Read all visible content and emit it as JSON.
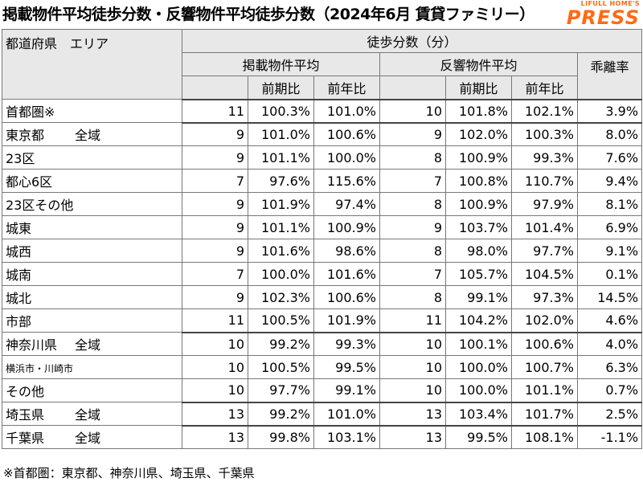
{
  "title": "掲載物件平均徒歩分数・反響物件平均徒歩分数（2024年6月 賃貸ファミリー）",
  "brand": {
    "top": "LIFULL HOME'S",
    "main": "PRESS"
  },
  "headers": {
    "region": "都道府県　エリア",
    "walk": "徒歩分数（分）",
    "listed": "掲載物件平均",
    "response": "反響物件平均",
    "gap": "乖離率",
    "prev_period": "前期比",
    "prev_year": "前年比"
  },
  "rows": [
    {
      "pref": "首都圏※",
      "area": "",
      "level": 0,
      "l_min": "11",
      "l_pp": "100.3%",
      "l_py": "101.0%",
      "r_min": "10",
      "r_pp": "101.8%",
      "r_py": "102.1%",
      "gap": "3.9%"
    },
    {
      "pref": "東京都",
      "area": "全域",
      "level": 0,
      "l_min": "9",
      "l_pp": "101.0%",
      "l_py": "100.6%",
      "r_min": "9",
      "r_pp": "102.0%",
      "r_py": "100.3%",
      "gap": "8.0%"
    },
    {
      "pref": "",
      "area": "23区",
      "level": 1,
      "l_min": "9",
      "l_pp": "101.1%",
      "l_py": "100.0%",
      "r_min": "8",
      "r_pp": "100.9%",
      "r_py": "99.3%",
      "gap": "7.6%"
    },
    {
      "pref": "",
      "area": "都心6区",
      "level": 2,
      "l_min": "7",
      "l_pp": "97.6%",
      "l_py": "115.6%",
      "r_min": "7",
      "r_pp": "100.8%",
      "r_py": "110.7%",
      "gap": "9.4%"
    },
    {
      "pref": "",
      "area": "23区その他",
      "level": 2,
      "l_min": "9",
      "l_pp": "101.9%",
      "l_py": "97.4%",
      "r_min": "8",
      "r_pp": "100.9%",
      "r_py": "97.9%",
      "gap": "8.1%"
    },
    {
      "pref": "",
      "area": "城東",
      "level": 2,
      "l_min": "9",
      "l_pp": "101.1%",
      "l_py": "100.9%",
      "r_min": "9",
      "r_pp": "103.7%",
      "r_py": "101.4%",
      "gap": "6.9%"
    },
    {
      "pref": "",
      "area": "城西",
      "level": 2,
      "l_min": "9",
      "l_pp": "101.6%",
      "l_py": "98.6%",
      "r_min": "8",
      "r_pp": "98.0%",
      "r_py": "97.7%",
      "gap": "9.1%"
    },
    {
      "pref": "",
      "area": "城南",
      "level": 2,
      "l_min": "7",
      "l_pp": "100.0%",
      "l_py": "101.6%",
      "r_min": "7",
      "r_pp": "105.7%",
      "r_py": "104.5%",
      "gap": "0.1%"
    },
    {
      "pref": "",
      "area": "城北",
      "level": 2,
      "l_min": "9",
      "l_pp": "102.3%",
      "l_py": "100.6%",
      "r_min": "8",
      "r_pp": "99.1%",
      "r_py": "97.3%",
      "gap": "14.5%"
    },
    {
      "pref": "",
      "area": "市部",
      "level": 1,
      "l_min": "11",
      "l_pp": "100.5%",
      "l_py": "101.9%",
      "r_min": "11",
      "r_pp": "104.2%",
      "r_py": "102.0%",
      "gap": "4.6%"
    },
    {
      "pref": "神奈川県",
      "area": "全域",
      "level": 0,
      "l_min": "10",
      "l_pp": "99.2%",
      "l_py": "99.3%",
      "r_min": "10",
      "r_pp": "100.1%",
      "r_py": "100.6%",
      "gap": "4.0%"
    },
    {
      "pref": "",
      "area": "横浜市・川崎市",
      "level": 1,
      "l_min": "10",
      "l_pp": "100.5%",
      "l_py": "99.5%",
      "r_min": "10",
      "r_pp": "100.0%",
      "r_py": "100.7%",
      "gap": "6.3%"
    },
    {
      "pref": "",
      "area": "その他",
      "level": 1,
      "l_min": "10",
      "l_pp": "97.7%",
      "l_py": "99.1%",
      "r_min": "10",
      "r_pp": "100.0%",
      "r_py": "101.1%",
      "gap": "0.7%"
    },
    {
      "pref": "埼玉県",
      "area": "全域",
      "level": 0,
      "l_min": "13",
      "l_pp": "99.2%",
      "l_py": "101.0%",
      "r_min": "13",
      "r_pp": "103.4%",
      "r_py": "101.7%",
      "gap": "2.5%"
    },
    {
      "pref": "千葉県",
      "area": "全域",
      "level": 0,
      "l_min": "13",
      "l_pp": "99.8%",
      "l_py": "103.1%",
      "r_min": "13",
      "r_pp": "99.5%",
      "r_py": "108.1%",
      "gap": "-1.1%"
    }
  ],
  "footnote": "※首都圏：東京都、神奈川県、埼玉県、千葉県"
}
